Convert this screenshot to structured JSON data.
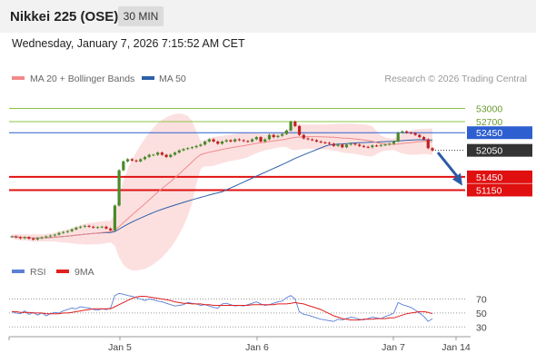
{
  "header": {
    "title": "Nikkei 225 (OSE)",
    "timeframe_label": "30 MIN",
    "datetime": "Wednesday, January 7, 2026 7:15:52 AM CET"
  },
  "legend": {
    "items": [
      {
        "label": "MA 20 + Bollinger Bands",
        "color": "#f08a8a"
      },
      {
        "label": "MA 50",
        "color": "#2e5fa8"
      }
    ],
    "copyright": "Research © 2026 Trading Central"
  },
  "rsi_legend": {
    "items": [
      {
        "label": "RSI",
        "color": "#5b7fd6"
      },
      {
        "label": "9MA",
        "color": "#e02020"
      }
    ]
  },
  "colors": {
    "green_level": "#8bc34a",
    "blue_level": "#2e5fd0",
    "red_level": "#e01010",
    "current_price_bg": "#333333",
    "candle_up": "#4a8a2a",
    "candle_down": "#c02020",
    "arrow": "#2d5aa6",
    "bollinger_fill": "#fbdada"
  },
  "chart_data": {
    "type": "candlestick",
    "x_ticks": [
      "Jan 5",
      "Jan 6",
      "Jan 7",
      "Jan 14"
    ],
    "price_ylim": [
      49700,
      53400
    ],
    "levels": [
      {
        "value": 53000,
        "label": "53000",
        "kind": "resistance-green"
      },
      {
        "value": 52700,
        "label": "52700",
        "kind": "resistance-green"
      },
      {
        "value": 52450,
        "label": "52450",
        "kind": "pivot"
      },
      {
        "value": 51450,
        "label": "51450",
        "kind": "support-red"
      },
      {
        "value": 51150,
        "label": "51150",
        "kind": "support-red"
      }
    ],
    "current_price": {
      "value": 52050,
      "label": "52050"
    },
    "projection": {
      "from": 52000,
      "to": 51250
    },
    "close": [
      50100,
      50080,
      50060,
      50080,
      50050,
      50030,
      50060,
      50080,
      50100,
      50120,
      50140,
      50180,
      50200,
      50220,
      50260,
      50300,
      50320,
      50340,
      50320,
      50300,
      50310,
      50320,
      50280,
      50240,
      50800,
      51600,
      51800,
      51850,
      51820,
      51800,
      51850,
      51900,
      51950,
      51950,
      52000,
      51950,
      51900,
      51950,
      52000,
      52050,
      52080,
      52100,
      52120,
      52150,
      52180,
      52250,
      52300,
      52250,
      52200,
      52250,
      52280,
      52250,
      52300,
      52280,
      52260,
      52250,
      52300,
      52350,
      52250,
      52300,
      52400,
      52350,
      52380,
      52420,
      52500,
      52700,
      52600,
      52400,
      52320,
      52300,
      52280,
      52250,
      52230,
      52220,
      52200,
      52150,
      52180,
      52120,
      52180,
      52200,
      52180,
      52150,
      52130,
      52120,
      52160,
      52150,
      52170,
      52180,
      52200,
      52250,
      52450,
      52480,
      52450,
      52440,
      52400,
      52350,
      52300,
      52100,
      52050
    ],
    "rsi_ylim": [
      20,
      85
    ],
    "rsi_levels": [
      70,
      50,
      30
    ],
    "rsi": [
      52,
      50,
      49,
      53,
      48,
      51,
      47,
      50,
      46,
      49,
      51,
      50,
      53,
      55,
      57,
      56,
      59,
      58,
      57,
      55,
      54,
      56,
      55,
      57,
      75,
      78,
      77,
      75,
      74,
      72,
      70,
      68,
      70,
      69,
      67,
      66,
      64,
      62,
      60,
      61,
      62,
      65,
      64,
      63,
      61,
      62,
      60,
      58,
      57,
      63,
      64,
      62,
      60,
      61,
      60,
      62,
      64,
      66,
      63,
      61,
      62,
      64,
      66,
      67,
      72,
      75,
      70,
      52,
      48,
      47,
      45,
      43,
      41,
      40,
      39,
      38,
      41,
      40,
      42,
      44,
      43,
      41,
      40,
      42,
      44,
      43,
      42,
      45,
      47,
      50,
      65,
      62,
      60,
      58,
      54,
      50,
      45,
      38,
      42
    ],
    "rsi_ma": [
      52,
      52,
      51,
      51,
      51,
      50,
      50,
      50,
      49,
      49,
      49,
      49,
      50,
      50,
      51,
      52,
      53,
      54,
      55,
      56,
      56,
      56,
      56,
      56,
      59,
      62,
      65,
      68,
      71,
      73,
      74,
      74,
      73,
      72,
      71,
      70,
      69,
      68,
      66,
      65,
      64,
      64,
      63,
      63,
      63,
      62,
      62,
      61,
      61,
      61,
      61,
      61,
      61,
      61,
      61,
      61,
      62,
      62,
      62,
      62,
      62,
      62,
      63,
      63,
      63,
      64,
      65,
      64,
      63,
      61,
      59,
      57,
      55,
      52,
      49,
      46,
      44,
      42,
      41,
      40,
      40,
      40,
      41,
      41,
      41,
      42,
      42,
      42,
      43,
      43,
      45,
      47,
      49,
      50,
      51,
      52,
      52,
      51,
      49
    ]
  }
}
